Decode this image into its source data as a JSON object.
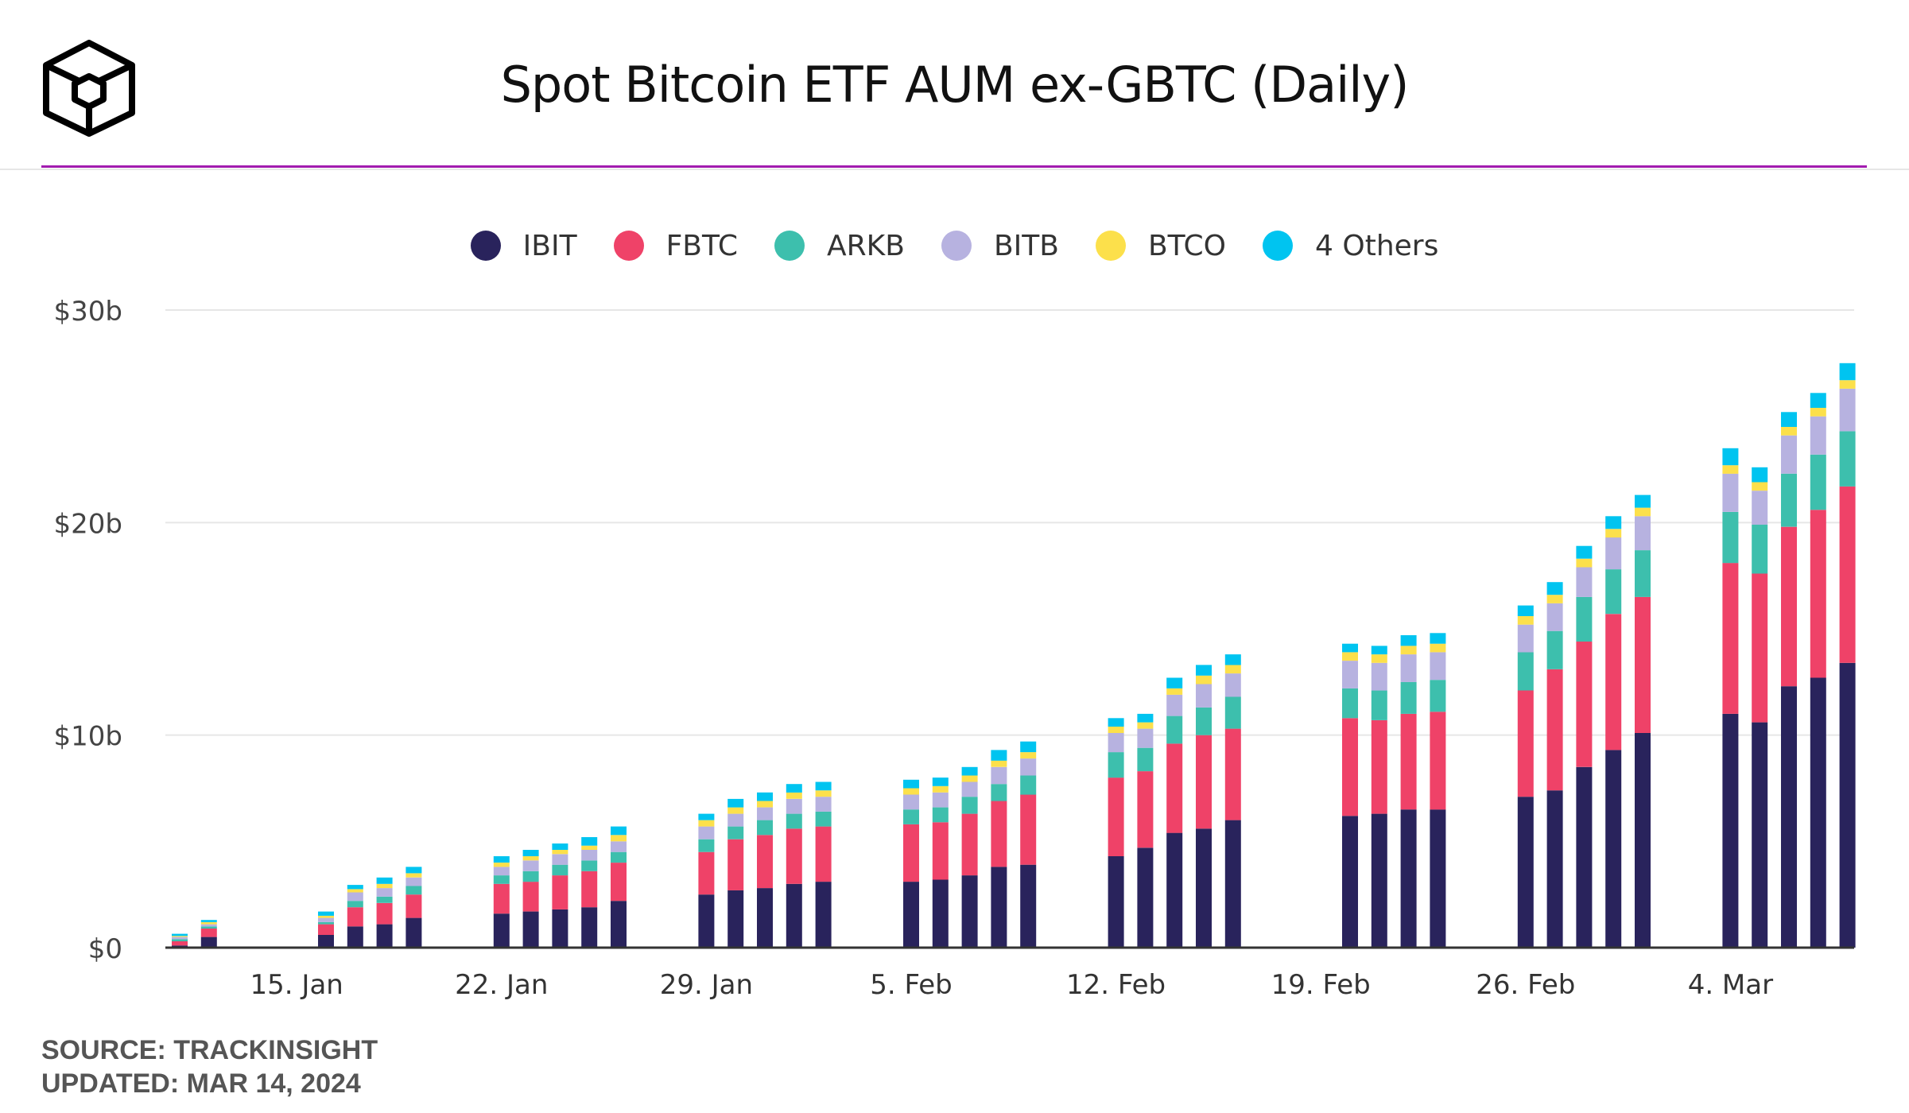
{
  "title": "Spot Bitcoin ETF AUM ex-GBTC (Daily)",
  "source_line": "SOURCE: TRACKINSIGHT",
  "updated_line": "UPDATED: MAR 14, 2024",
  "colors": {
    "IBIT": "#29235c",
    "FBTC": "#ef4268",
    "ARKB": "#3dbfad",
    "BITB": "#b7b2e0",
    "BTCO": "#fce04b",
    "4 Others": "#00c4f0",
    "accent": "#a21caf"
  },
  "chart_data": {
    "type": "bar",
    "stacked": true,
    "title": "Spot Bitcoin ETF AUM ex-GBTC (Daily)",
    "xlabel": "",
    "ylabel": "",
    "ylim": [
      0,
      30
    ],
    "y_unit": "billion USD",
    "y_ticks": [
      "$0",
      "$10b",
      "$20b",
      "$30b"
    ],
    "x_ticks": [
      "15. Jan",
      "22. Jan",
      "29. Jan",
      "5. Feb",
      "12. Feb",
      "19. Feb",
      "26. Feb",
      "4. Mar"
    ],
    "grid": true,
    "legend_position": "top-center",
    "categories": [
      "2024-01-11",
      "2024-01-12",
      "2024-01-16",
      "2024-01-17",
      "2024-01-18",
      "2024-01-19",
      "2024-01-22",
      "2024-01-23",
      "2024-01-24",
      "2024-01-25",
      "2024-01-26",
      "2024-01-29",
      "2024-01-30",
      "2024-01-31",
      "2024-02-01",
      "2024-02-02",
      "2024-02-05",
      "2024-02-06",
      "2024-02-07",
      "2024-02-08",
      "2024-02-09",
      "2024-02-12",
      "2024-02-13",
      "2024-02-14",
      "2024-02-15",
      "2024-02-16",
      "2024-02-20",
      "2024-02-21",
      "2024-02-22",
      "2024-02-23",
      "2024-02-26",
      "2024-02-27",
      "2024-02-28",
      "2024-02-29",
      "2024-03-01",
      "2024-03-04",
      "2024-03-05",
      "2024-03-06",
      "2024-03-07",
      "2024-03-08"
    ],
    "series": [
      {
        "name": "IBIT",
        "values": [
          0.1,
          0.5,
          0.6,
          1.0,
          1.1,
          1.4,
          1.6,
          1.7,
          1.8,
          1.9,
          2.2,
          2.5,
          2.7,
          2.8,
          3.0,
          3.1,
          3.1,
          3.2,
          3.4,
          3.8,
          3.9,
          4.3,
          4.7,
          5.4,
          5.6,
          6.0,
          6.2,
          6.3,
          6.5,
          6.5,
          7.1,
          7.4,
          8.5,
          9.3,
          10.1,
          11.0,
          10.6,
          12.3,
          12.7,
          13.4
        ]
      },
      {
        "name": "FBTC",
        "values": [
          0.2,
          0.4,
          0.5,
          0.9,
          1.0,
          1.1,
          1.4,
          1.4,
          1.6,
          1.7,
          1.8,
          2.0,
          2.4,
          2.5,
          2.6,
          2.6,
          2.7,
          2.7,
          2.9,
          3.1,
          3.3,
          3.7,
          3.6,
          4.2,
          4.4,
          4.3,
          4.6,
          4.4,
          4.5,
          4.6,
          5.0,
          5.7,
          5.9,
          6.4,
          6.4,
          7.1,
          7.0,
          7.5,
          7.9,
          8.3
        ]
      },
      {
        "name": "ARKB",
        "values": [
          0.1,
          0.1,
          0.1,
          0.3,
          0.3,
          0.4,
          0.4,
          0.5,
          0.5,
          0.5,
          0.5,
          0.6,
          0.6,
          0.7,
          0.7,
          0.7,
          0.7,
          0.7,
          0.8,
          0.8,
          0.9,
          1.2,
          1.1,
          1.3,
          1.3,
          1.5,
          1.4,
          1.4,
          1.5,
          1.5,
          1.8,
          1.8,
          2.1,
          2.1,
          2.2,
          2.4,
          2.3,
          2.5,
          2.6,
          2.6
        ]
      },
      {
        "name": "BITB",
        "values": [
          0.1,
          0.1,
          0.2,
          0.4,
          0.4,
          0.4,
          0.4,
          0.5,
          0.5,
          0.5,
          0.5,
          0.6,
          0.6,
          0.6,
          0.7,
          0.7,
          0.7,
          0.7,
          0.7,
          0.8,
          0.8,
          0.9,
          0.9,
          1.0,
          1.1,
          1.1,
          1.3,
          1.3,
          1.3,
          1.3,
          1.3,
          1.3,
          1.4,
          1.5,
          1.6,
          1.8,
          1.6,
          1.8,
          1.8,
          2.0
        ]
      },
      {
        "name": "BTCO",
        "values": [
          0.05,
          0.1,
          0.1,
          0.15,
          0.2,
          0.2,
          0.2,
          0.2,
          0.2,
          0.2,
          0.3,
          0.3,
          0.3,
          0.3,
          0.3,
          0.3,
          0.3,
          0.3,
          0.3,
          0.3,
          0.3,
          0.3,
          0.3,
          0.3,
          0.4,
          0.4,
          0.4,
          0.4,
          0.4,
          0.4,
          0.4,
          0.4,
          0.4,
          0.4,
          0.4,
          0.4,
          0.4,
          0.4,
          0.4,
          0.4
        ]
      },
      {
        "name": "4 Others",
        "values": [
          0.1,
          0.1,
          0.2,
          0.2,
          0.3,
          0.3,
          0.3,
          0.3,
          0.3,
          0.4,
          0.4,
          0.3,
          0.4,
          0.4,
          0.4,
          0.4,
          0.4,
          0.4,
          0.4,
          0.5,
          0.5,
          0.4,
          0.4,
          0.5,
          0.5,
          0.5,
          0.4,
          0.4,
          0.5,
          0.5,
          0.5,
          0.6,
          0.6,
          0.6,
          0.6,
          0.8,
          0.7,
          0.7,
          0.7,
          0.8
        ]
      }
    ]
  }
}
